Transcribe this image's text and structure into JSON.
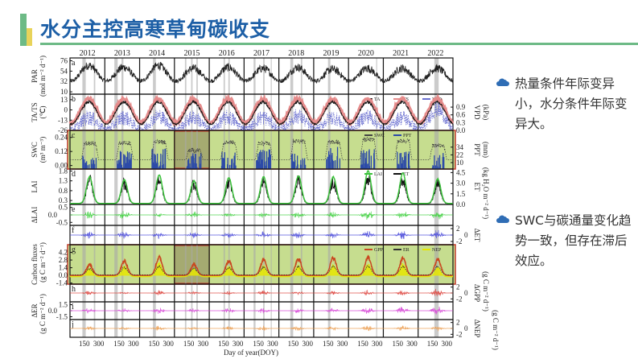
{
  "slide": {
    "title": "水分主控高寒草甸碳收支",
    "bullets": [
      {
        "icon": "cloud-icon",
        "text": "热量条件年际变异小，水分条件年际变异大。"
      },
      {
        "icon": "cloud-icon",
        "text": "SWC与碳通量变化趋势一致，但存在滞后效应。"
      }
    ]
  },
  "chart_data": {
    "type": "line",
    "years": [
      "2012",
      "2013",
      "2014",
      "2015",
      "2016",
      "2017",
      "2018",
      "2019",
      "2020",
      "2021",
      "2022"
    ],
    "xlabel": "Day of year(DOY)",
    "xticks": [
      "150",
      "300"
    ],
    "drought_periods_doy": [
      [
        [
          130,
          165
        ],
        [
          250,
          265
        ]
      ],
      [
        [
          100,
          135
        ],
        [
          175,
          195
        ]
      ],
      [
        [
          140,
          170
        ]
      ],
      [
        [
          110,
          125
        ],
        [
          175,
          190
        ],
        [
          230,
          245
        ]
      ],
      [
        [
          150,
          165
        ],
        [
          200,
          215
        ]
      ],
      [
        [
          100,
          120
        ],
        [
          200,
          215
        ],
        [
          280,
          290
        ]
      ],
      [
        [
          120,
          150
        ],
        [
          230,
          245
        ]
      ],
      [
        [
          150,
          175
        ]
      ],
      [
        [
          290,
          300
        ]
      ],
      [],
      [
        [
          170,
          215
        ]
      ]
    ],
    "highlight_panels": [
      "c",
      "g"
    ],
    "highlight_year": "2015",
    "colors": {
      "highlight_fill": "#c6dd8f",
      "highlight_border": "#c0392b",
      "drought": "#a8a8a8"
    },
    "panels": [
      {
        "id": "a",
        "ylabel": "PAR",
        "yunit": "(mol m⁻² d⁻¹)",
        "ylim": [
          5,
          82
        ],
        "yticks": [
          "10",
          "32",
          "54",
          "76"
        ],
        "series": [
          {
            "name": "PAR",
            "shape": "cos",
            "color": "#222222",
            "min": 33,
            "peaks": [
              66,
              62,
              66,
              60,
              62,
              60,
              62,
              58,
              60,
              60,
              60
            ],
            "noise": 9
          }
        ]
      },
      {
        "id": "b",
        "ylabel": "TA/TS",
        "yunit": "(℃)",
        "ylim": [
          -26,
          20
        ],
        "yticks": [
          "-26",
          "-13",
          "0",
          "13"
        ],
        "rlabel": "VPD",
        "runit": "(kPa)",
        "rlim": [
          0,
          1.4
        ],
        "rticks": [
          "0.0",
          "0.3",
          "0.6",
          "0.9"
        ],
        "legend": [
          "TA",
          "TS",
          "VPD"
        ],
        "series": [
          {
            "name": "TS",
            "shape": "cos",
            "color": "#e58b8b",
            "min": -16,
            "peaks": [
              14,
              14,
              14,
              14,
              14,
              14,
              14,
              14,
              14,
              14,
              14
            ],
            "noise": 2,
            "width": 3
          },
          {
            "name": "TA",
            "shape": "cos",
            "color": "#111111",
            "min": -18,
            "peaks": [
              10,
              10,
              10,
              10,
              10,
              10,
              10,
              10,
              10,
              10,
              10
            ],
            "noise": 2
          },
          {
            "name": "VPD",
            "shape": "cos",
            "color": "#6a6fd0",
            "axis": "right",
            "min": 0.05,
            "peaks": [
              0.5,
              0.5,
              0.55,
              0.5,
              0.5,
              0.5,
              0.55,
              0.5,
              0.55,
              0.5,
              0.8
            ],
            "noise": 0.3,
            "dotted": true
          }
        ]
      },
      {
        "id": "c",
        "ylabel": "SWC",
        "yunit": "(m³ m⁻³)",
        "ylim": [
          -0.03,
          0.3
        ],
        "yticks": [
          "0.00",
          "0.12",
          "0.24"
        ],
        "rlabel": "PPT",
        "runit": "(mm)",
        "rlim": [
          0,
          60
        ],
        "rticks": [
          "10",
          "22",
          "34"
        ],
        "legend": [
          "SWC",
          "PPT"
        ],
        "series": [
          {
            "name": "PPT",
            "shape": "bars",
            "color": "#2c4aa8",
            "axis": "right",
            "peaks": [
              14,
              18,
              20,
              16,
              18,
              20,
              16,
              22,
              20,
              18,
              16
            ]
          },
          {
            "name": "SWC",
            "shape": "plateau",
            "color": "#444444",
            "min": 0.05,
            "peaks": [
              0.19,
              0.19,
              0.2,
              0.13,
              0.2,
              0.19,
              0.21,
              0.2,
              0.22,
              0.21,
              0.17
            ],
            "noise": 0.02,
            "dotted": true
          }
        ]
      },
      {
        "id": "d",
        "ylabel": "LAI",
        "yunit": "",
        "ylim": [
          0.1,
          1.9
        ],
        "yticks": [
          "0.3",
          "0.8",
          "1.3",
          "1.8"
        ],
        "rlabel": "ET",
        "runit": "(kg H₂O m⁻² d⁻¹)",
        "rlim": [
          0,
          5
        ],
        "rticks": [
          "0.0",
          "1.5",
          "3.0",
          "4.5"
        ],
        "legend": [
          "LAI",
          "ET"
        ],
        "series": [
          {
            "name": "ET",
            "shape": "bell",
            "color": "#111111",
            "axis": "right",
            "min": 0.1,
            "peaks": [
              3.4,
              3.0,
              3.6,
              3.0,
              3.2,
              3.2,
              3.4,
              3.2,
              3.6,
              3.5,
              3.0
            ],
            "noise": 0.9
          },
          {
            "name": "LAI",
            "shape": "bell",
            "color": "#3cc23c",
            "min": 0.15,
            "peaks": [
              1.5,
              1.35,
              1.6,
              1.3,
              1.45,
              1.5,
              1.55,
              1.5,
              1.8,
              1.7,
              1.4
            ],
            "noise": 0.02,
            "width": 1.5
          }
        ]
      },
      {
        "id": "e",
        "ylabel": "ΔLAI",
        "yunit": "",
        "ylim": [
          -0.7,
          0.7
        ],
        "yticks": [
          "-0.5",
          "0.0",
          "0.5"
        ],
        "series": [
          {
            "name": "ΔLAI",
            "shape": "delta",
            "color": "#4fd44f",
            "amps": [
              0.25,
              0.3,
              0.15,
              0.25,
              0.2,
              0.2,
              0.25,
              0.2,
              0.35,
              0.3,
              0.35
            ]
          }
        ]
      },
      {
        "id": "f",
        "ylabel": "",
        "yunit": "",
        "ylim": [
          -3,
          3
        ],
        "yticks": [],
        "rlabel": "ΔET",
        "runit": "",
        "rlim": [
          -3,
          3
        ],
        "rticks": [
          "-2",
          "0",
          "2"
        ],
        "series": [
          {
            "name": "ΔET",
            "shape": "delta",
            "color": "#5555dd",
            "amps": [
              1.2,
              1.1,
              1.2,
              1.1,
              1.0,
              1.2,
              1.0,
              1.1,
              1.3,
              1.4,
              1.6
            ]
          }
        ]
      },
      {
        "id": "g",
        "ylabel": "Carbon fluxes",
        "yunit": "(g C m⁻² d⁻¹)",
        "ylim": [
          -1.6,
          5.6
        ],
        "yticks": [
          "-1.4",
          "0.0",
          "1.4",
          "2.8",
          "4.2"
        ],
        "legend": [
          "GPP",
          "ER",
          "NEP"
        ],
        "series": [
          {
            "name": "NEP",
            "shape": "bellfill",
            "color": "#e6e600",
            "min": -0.3,
            "peaks": [
              1.2,
              1.5,
              2.2,
              1.3,
              1.5,
              1.6,
              1.7,
              1.8,
              2.0,
              2.0,
              1.4
            ],
            "noise": 0.3
          },
          {
            "name": "GPP",
            "shape": "bell",
            "color": "#c9471f",
            "min": 0.0,
            "peaks": [
              1.9,
              2.6,
              3.3,
              2.0,
              2.6,
              2.8,
              3.0,
              3.2,
              3.3,
              3.1,
              2.9
            ],
            "noise": 0.3,
            "width": 1.5
          },
          {
            "name": "ER",
            "shape": "bell",
            "color": "#333333",
            "min": 0.1,
            "peaks": [
              1.2,
              1.4,
              1.6,
              1.3,
              1.4,
              1.5,
              1.5,
              1.6,
              1.7,
              1.6,
              1.6
            ],
            "noise": 0.15,
            "dotted": true
          }
        ]
      },
      {
        "id": "h",
        "ylabel": "",
        "yunit": "",
        "ylim": [
          -3,
          3
        ],
        "yticks": [],
        "rlabel": "ΔGPP",
        "runit": "(g C m⁻² d⁻¹)",
        "rlim": [
          -3,
          3
        ],
        "rticks": [
          "-2",
          "0",
          "2"
        ],
        "series": [
          {
            "name": "ΔGPP",
            "shape": "delta",
            "color": "#e0504a",
            "amps": [
              0.8,
              0.6,
              1.0,
              0.7,
              0.8,
              0.9,
              0.8,
              0.7,
              1.1,
              1.0,
              1.6
            ]
          }
        ]
      },
      {
        "id": "i",
        "ylabel": "ΔER",
        "yunit": "(g C m⁻² d⁻¹)",
        "ylim": [
          -2.2,
          2.2
        ],
        "yticks": [
          "-1.5",
          "0.0",
          "1.5"
        ],
        "series": [
          {
            "name": "ΔER",
            "shape": "delta",
            "color": "#d94fd9",
            "amps": [
              0.7,
              0.6,
              0.8,
              0.6,
              0.7,
              0.7,
              0.6,
              0.7,
              0.9,
              1.0,
              1.2
            ]
          }
        ]
      },
      {
        "id": "j",
        "ylabel": "",
        "yunit": "",
        "ylim": [
          -3,
          3
        ],
        "yticks": [],
        "rlabel": "ΔNEP",
        "runit": "(g C m⁻² d⁻¹)",
        "rlim": [
          -3,
          3
        ],
        "rticks": [
          "-2",
          "0",
          "2"
        ],
        "series": [
          {
            "name": "ΔNEP",
            "shape": "delta",
            "color": "#eda35a",
            "amps": [
              0.8,
              0.7,
              1.0,
              0.7,
              0.8,
              0.9,
              0.8,
              0.8,
              1.0,
              1.0,
              1.2
            ]
          }
        ]
      }
    ]
  }
}
